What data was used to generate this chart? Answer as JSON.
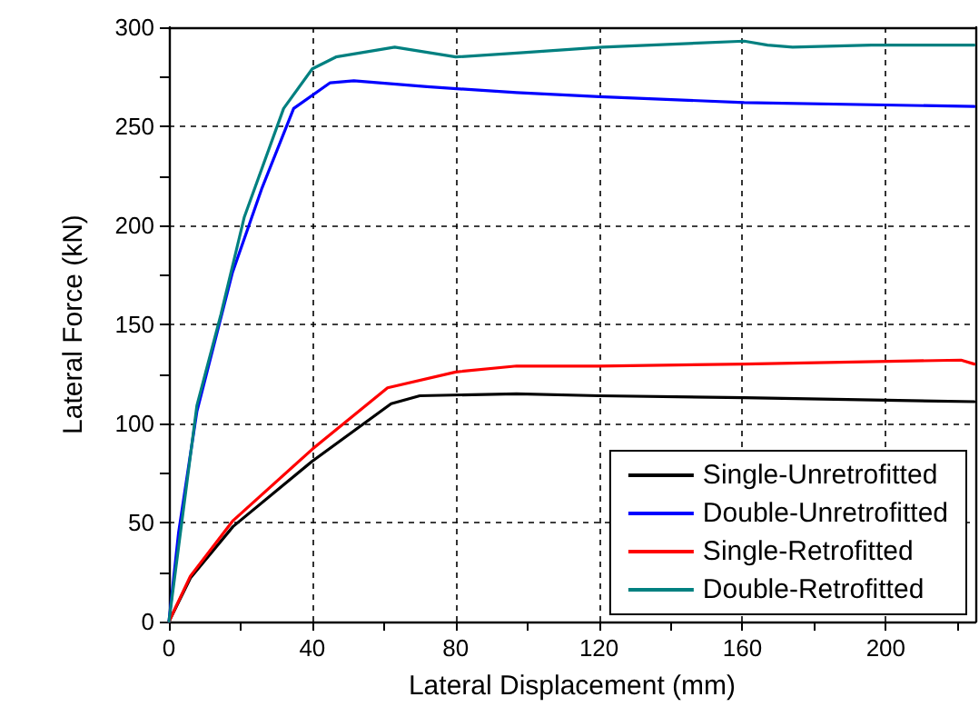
{
  "chart_data": {
    "type": "line",
    "xlabel": "Lateral Displacement (mm)",
    "ylabel": "Lateral Force (kN)",
    "xlim": [
      0,
      225
    ],
    "xticks": [
      0,
      {
        "value": 20,
        "label": null
      },
      40,
      {
        "value": 60,
        "label": null
      },
      80,
      {
        "value": 100,
        "label": null
      },
      120,
      {
        "value": 140,
        "label": null
      },
      160,
      {
        "value": 180,
        "label": null
      },
      200,
      {
        "value": 220,
        "label": null
      }
    ],
    "ylim": [
      0,
      300
    ],
    "yticks": [
      0,
      {
        "value": 25,
        "label": null
      },
      50,
      {
        "value": 75,
        "label": null
      },
      100,
      {
        "value": 125,
        "label": null
      },
      150,
      {
        "value": 175,
        "label": null
      },
      200,
      {
        "value": 225,
        "label": null
      },
      250,
      {
        "value": 275,
        "label": null
      },
      300
    ],
    "grid": true,
    "legend": "bottom right",
    "marker": "none",
    "line_style": "solid",
    "series": [
      {
        "name": "Single-Unretrofitted",
        "color": "#000000",
        "x": [
          0,
          6,
          17.9,
          40,
          62,
          70,
          97,
          120,
          160.5,
          224.7
        ],
        "values": [
          0,
          22,
          48,
          81,
          110,
          114,
          115,
          114,
          113,
          111
        ]
      },
      {
        "name": "Double-Unretrofitted",
        "color": "#0000ff",
        "x": [
          0,
          2.7,
          7.8,
          17.7,
          26,
          34.8,
          45,
          51.6,
          72,
          97,
          120,
          160.5,
          224.7
        ],
        "values": [
          0,
          45,
          106,
          176,
          219,
          259,
          272,
          273,
          270,
          267,
          265,
          262,
          260
        ]
      },
      {
        "name": "Single-Retrofitted",
        "color": "#ff0000",
        "x": [
          0,
          6,
          17.9,
          40,
          61,
          80,
          97,
          120,
          160.5,
          221,
          224.7
        ],
        "values": [
          0,
          23,
          51,
          87,
          118,
          126,
          129,
          129,
          130,
          132,
          130
        ]
      },
      {
        "name": "Double-Retrofitted",
        "color": "#008080",
        "x": [
          0,
          7.8,
          14.5,
          21,
          32,
          40,
          46.6,
          63,
          80,
          97,
          121,
          160.5,
          167,
          174,
          196,
          224.7
        ],
        "values": [
          0,
          109,
          155,
          204,
          259,
          279,
          285,
          290,
          285,
          287,
          290,
          293,
          291,
          290,
          291,
          291
        ]
      }
    ]
  }
}
